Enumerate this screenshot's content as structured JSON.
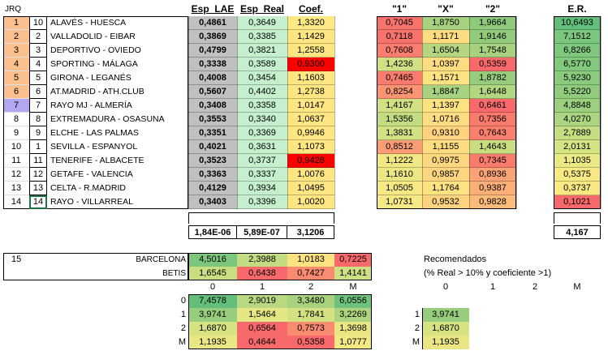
{
  "header": {
    "jrq": "JRQ",
    "esp_lae": "Esp_LAE",
    "esp_real": "Esp_Real",
    "coef": "Coef.",
    "h1": "\"1\"",
    "hx": "\"X\"",
    "h2": "\"2\"",
    "er": "E.R."
  },
  "colors": {
    "orange_idx": "#fac090",
    "purple_idx": "#b4a7f0",
    "gray_col": "#c0c0c0",
    "light_green": "#c6efce",
    "red": "#ff0000"
  },
  "rows": [
    {
      "idx": "1",
      "rank": "10",
      "match": "ALAVÉS - HUESCA",
      "lae": "0,4861",
      "real": "0,3649",
      "coef": "1,3320",
      "p1": "0,7045",
      "px": "1,8750",
      "p2": "1,9664",
      "er": "10,6493",
      "idx_color": "#fac090",
      "coef_color": "#fdea84",
      "p1_color": "#f8736c",
      "px_color": "#a8d27f",
      "p2_color": "#8fc97c",
      "er_color": "#63be7b"
    },
    {
      "idx": "2",
      "rank": "2",
      "match": "VALLADOLID - EIBAR",
      "lae": "0,3869",
      "real": "0,3385",
      "coef": "1,1429",
      "p1": "0,7118",
      "px": "1,1171",
      "p2": "1,9146",
      "er": "7,1512",
      "idx_color": "#fac090",
      "coef_color": "#fee683",
      "p1_color": "#f8736c",
      "px_color": "#fedc81",
      "p2_color": "#93cb7d",
      "er_color": "#7cc77e"
    },
    {
      "idx": "3",
      "rank": "3",
      "match": "DEPORTIVO - OVIEDO",
      "lae": "0,4799",
      "real": "0,3821",
      "coef": "1,2558",
      "p1": "0,7608",
      "px": "1,6504",
      "p2": "1,7548",
      "er": "6,8266",
      "idx_color": "#fac090",
      "coef_color": "#fee683",
      "p1_color": "#f97e6f",
      "px_color": "#b4d680",
      "p2_color": "#a7d17f",
      "er_color": "#80c87e"
    },
    {
      "idx": "4",
      "rank": "4",
      "match": "SPORTING - MÁLAGA",
      "lae": "0,3338",
      "real": "0,3589",
      "coef": "0,9300",
      "p1": "1,4236",
      "px": "1,0397",
      "p2": "0,5359",
      "er": "6,5770",
      "idx_color": "#fac090",
      "coef_color": "#ff0000",
      "p1_color": "#d0e082",
      "px_color": "#fedc81",
      "p2_color": "#f8696b",
      "er_color": "#82c97e"
    },
    {
      "idx": "5",
      "rank": "5",
      "match": "GIRONA - LEGANÉS",
      "lae": "0,4008",
      "real": "0,3454",
      "coef": "1,1603",
      "p1": "0,7465",
      "px": "1,1571",
      "p2": "1,8782",
      "er": "5,9230",
      "idx_color": "#fac090",
      "coef_color": "#fee683",
      "p1_color": "#f97b6e",
      "px_color": "#fde282",
      "p2_color": "#97cc7d",
      "er_color": "#8acb7e"
    },
    {
      "idx": "6",
      "rank": "6",
      "match": "AT.MADRID - ATH.CLUB",
      "lae": "0,5607",
      "real": "0,4402",
      "coef": "1,2738",
      "p1": "0,8254",
      "px": "1,8847",
      "p2": "1,6448",
      "er": "5,5220",
      "idx_color": "#fac090",
      "coef_color": "#fee683",
      "p1_color": "#fa9473",
      "px_color": "#a8d27f",
      "p2_color": "#b3d680",
      "er_color": "#8fcc7e"
    },
    {
      "idx": "7",
      "rank": "7",
      "match": "RAYO MJ - ALMERÍA",
      "lae": "0,3408",
      "real": "0,3358",
      "coef": "1,0147",
      "p1": "1,4167",
      "px": "1,1397",
      "p2": "0,6461",
      "er": "4,8848",
      "idx_color": "#b4a7f0",
      "coef_color": "#fee683",
      "p1_color": "#d0e082",
      "px_color": "#fde282",
      "p2_color": "#f8696b",
      "er_color": "#9bd07f"
    },
    {
      "idx": "8",
      "rank": "8",
      "match": "EXTREMADURA - OSASUNA",
      "lae": "0,3553",
      "real": "0,3340",
      "coef": "1,0637",
      "p1": "1,5356",
      "px": "1,0716",
      "p2": "0,7356",
      "er": "4,0270",
      "idx_color": "#ffffff",
      "coef_color": "#fee683",
      "p1_color": "#c4dc81",
      "px_color": "#fedc81",
      "p2_color": "#f97b6e",
      "er_color": "#abd580"
    },
    {
      "idx": "9",
      "rank": "9",
      "match": "ELCHE - LAS PALMAS",
      "lae": "0,3351",
      "real": "0,3369",
      "coef": "0,9946",
      "p1": "1,3831",
      "px": "0,9310",
      "p2": "0,7643",
      "er": "2,7889",
      "idx_color": "#ffffff",
      "coef_color": "#fee683",
      "p1_color": "#d2e182",
      "px_color": "#fed380",
      "p2_color": "#f9806f",
      "er_color": "#c5de82"
    },
    {
      "idx": "10",
      "rank": "1",
      "match": "SEVILLA - ESPANYOL",
      "lae": "0,4021",
      "real": "0,3631",
      "coef": "1,1073",
      "p1": "0,8512",
      "px": "1,1155",
      "p2": "1,4643",
      "er": "2,0131",
      "idx_color": "#ffffff",
      "coef_color": "#fee683",
      "p1_color": "#fa9c75",
      "px_color": "#fedc81",
      "p2_color": "#c9de81",
      "er_color": "#d6e382"
    },
    {
      "idx": "11",
      "rank": "11",
      "match": "TENERIFE - ALBACETE",
      "lae": "0,3523",
      "real": "0,3737",
      "coef": "0,9428",
      "p1": "1,1222",
      "px": "0,9975",
      "p2": "0,7345",
      "er": "1,1035",
      "idx_color": "#ffffff",
      "coef_color": "#ff0000",
      "p1_color": "#f0e883",
      "px_color": "#fed781",
      "p2_color": "#f97b6e",
      "er_color": "#ebe983"
    },
    {
      "idx": "12",
      "rank": "12",
      "match": "GETAFE - VALENCIA",
      "lae": "0,3363",
      "real": "0,3337",
      "coef": "1,0076",
      "p1": "1,1610",
      "px": "0,9857",
      "p2": "0,8936",
      "er": "0,5375",
      "idx_color": "#ffffff",
      "coef_color": "#fee683",
      "p1_color": "#ebe783",
      "px_color": "#fed680",
      "p2_color": "#faa476",
      "er_color": "#f7e983"
    },
    {
      "idx": "13",
      "rank": "13",
      "match": "CELTA - R.MADRID",
      "lae": "0,4129",
      "real": "0,3934",
      "coef": "1,0495",
      "p1": "1,0505",
      "px": "1,1764",
      "p2": "0,9387",
      "er": "0,3737",
      "idx_color": "#ffffff",
      "coef_color": "#fee683",
      "p1_color": "#f6e984",
      "px_color": "#fde282",
      "p2_color": "#fbaf78",
      "er_color": "#fae983"
    },
    {
      "idx": "14",
      "rank": "14",
      "match": "RAYO - VILLARREAL",
      "lae": "0,3403",
      "real": "0,3396",
      "coef": "1,0020",
      "p1": "1,0731",
      "px": "0,9532",
      "p2": "0,9828",
      "er": "0,1021",
      "idx_color": "#ffffff",
      "coef_color": "#fee683",
      "p1_color": "#f4e984",
      "px_color": "#fed380",
      "p2_color": "#fcbb7a",
      "er_color": "#f8696b"
    }
  ],
  "totals": {
    "lae": "1,84E-06",
    "real": "5,89E-07",
    "coef": "3,1206",
    "er": "4,167"
  },
  "pleno": {
    "row_no": "15",
    "home": "BARCELONA",
    "away": "BETIS",
    "home_vals": [
      "4,5016",
      "2,3988",
      "1,0183",
      "0,7225"
    ],
    "away_vals": [
      "1,6545",
      "0,6438",
      "0,7427",
      "1,4141"
    ],
    "home_colors": [
      "#7dc67e",
      "#c4dc81",
      "#fde282",
      "#f8696b"
    ],
    "away_colors": [
      "#c9de81",
      "#f8696b",
      "#f98b71",
      "#cfe082"
    ],
    "cols": [
      "0",
      "1",
      "2",
      "M"
    ],
    "rows": [
      "0",
      "1",
      "2",
      "M"
    ],
    "matrix": [
      [
        "7,4578",
        "2,9019",
        "3,3480",
        "6,0556"
      ],
      [
        "3,9741",
        "1,5464",
        "1,7841",
        "3,2269"
      ],
      [
        "1,6870",
        "0,6564",
        "0,7573",
        "1,3698"
      ],
      [
        "1,1935",
        "0,4644",
        "0,5358",
        "1,0777"
      ]
    ],
    "matrix_colors": [
      [
        "#63be7b",
        "#b8d881",
        "#a9d27f",
        "#6fc27c"
      ],
      [
        "#99cd7e",
        "#e4e583",
        "#d4e182",
        "#acd47f"
      ],
      [
        "#d7e382",
        "#f8696b",
        "#f98b71",
        "#e9e683"
      ],
      [
        "#eae683",
        "#f8696b",
        "#f8696b",
        "#f2e884"
      ]
    ]
  },
  "recomendados": {
    "title": "Recomendados",
    "subtitle": "(% Real > 10% y coeficiente >1)",
    "cols": [
      "0",
      "1",
      "2",
      "M"
    ],
    "rows": [
      "1",
      "2",
      "M"
    ],
    "values": [
      "3,9741",
      "1,6870",
      "1,1935"
    ]
  }
}
